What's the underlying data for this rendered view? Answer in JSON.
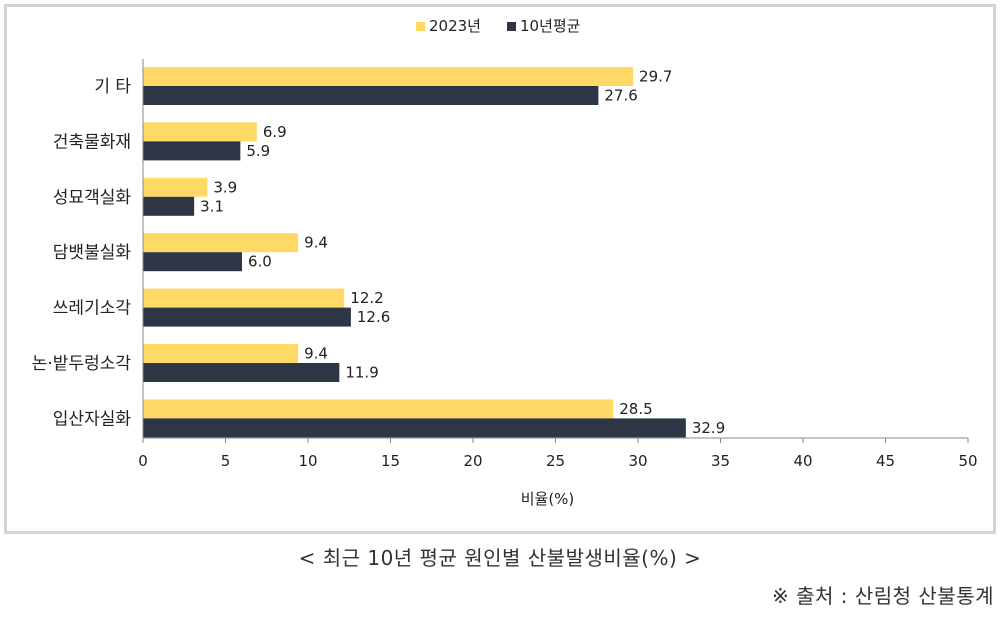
{
  "chart_data": {
    "type": "bar",
    "orientation": "horizontal",
    "categories": [
      "기 타",
      "건축물화재",
      "성묘객실화",
      "담뱃불실화",
      "쓰레기소각",
      "논·밭두렁소각",
      "입산자실화"
    ],
    "series": [
      {
        "name": "2023년",
        "color": "#ffd966",
        "values": [
          29.7,
          6.9,
          3.9,
          9.4,
          12.2,
          9.4,
          28.5
        ]
      },
      {
        "name": "10년평균",
        "color": "#2e3545",
        "values": [
          27.6,
          5.9,
          3.1,
          6.0,
          12.6,
          11.9,
          32.9
        ]
      }
    ],
    "value_labels": {
      "2023년": [
        "29.7",
        "6.9",
        "3.9",
        "9.4",
        "12.2",
        "9.4",
        "28.5"
      ],
      "10년평균": [
        "27.6",
        "5.9",
        "3.1",
        "6.0",
        "12.6",
        "11.9",
        "32.9"
      ]
    },
    "xlim": [
      0,
      50
    ],
    "xticks": [
      0,
      5,
      10,
      15,
      20,
      25,
      30,
      35,
      40,
      45,
      50
    ],
    "xlabel": "비율(%)",
    "ylabel": "",
    "title": "",
    "legend_position": "top-center",
    "grid": false
  },
  "caption": "< 최근 10년 평균 원인별 산불발생비율(%) >",
  "source": "※ 출처 : 산림청 산불통계"
}
